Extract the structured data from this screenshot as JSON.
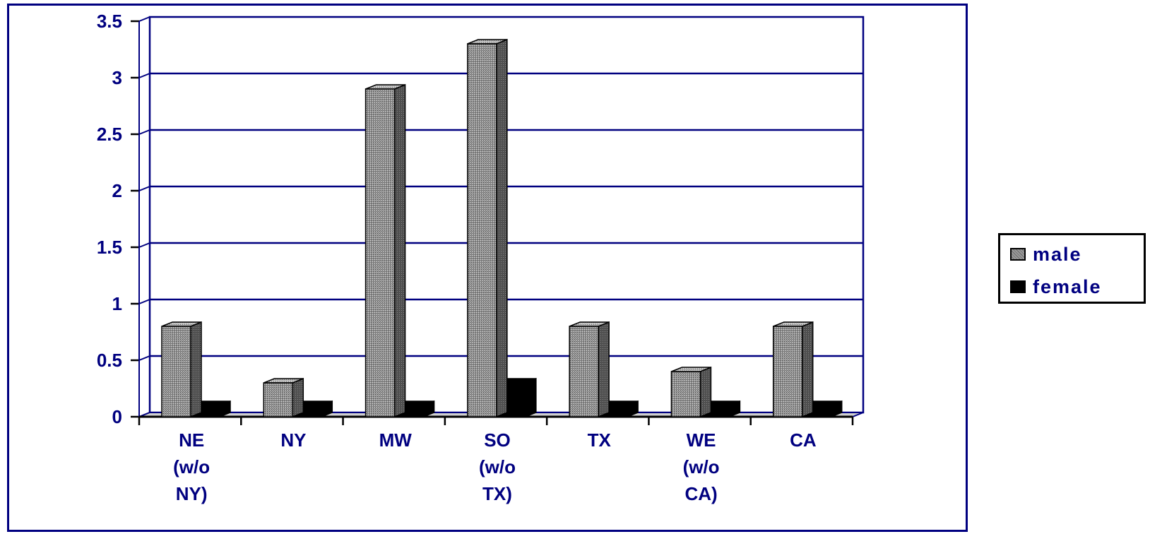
{
  "chart_data": {
    "type": "bar",
    "title": "",
    "xlabel": "",
    "ylabel": "",
    "categories": [
      [
        "NE",
        "(w/o",
        "NY)"
      ],
      [
        "NY"
      ],
      [
        "MW"
      ],
      [
        "SO",
        "(w/o",
        "TX)"
      ],
      [
        "TX"
      ],
      [
        "WE",
        "(w/o",
        "CA)"
      ],
      [
        "CA"
      ]
    ],
    "series": [
      {
        "name": "male",
        "values": [
          0.8,
          0.3,
          2.9,
          3.3,
          0.8,
          0.4,
          0.8
        ],
        "color": "#8c8c8c"
      },
      {
        "name": "female",
        "values": [
          0.1,
          0.1,
          0.1,
          0.3,
          0.1,
          0.1,
          0.1
        ],
        "color": "#000000"
      }
    ],
    "ylim": [
      0,
      3.5
    ],
    "yticks": [
      "0",
      "0.5",
      "1",
      "1.5",
      "2",
      "2.5",
      "3",
      "3.5"
    ],
    "grid": true,
    "legend_position": "right",
    "colors": {
      "axis": "#000080",
      "frame": "#000080",
      "text": "#000080"
    }
  }
}
